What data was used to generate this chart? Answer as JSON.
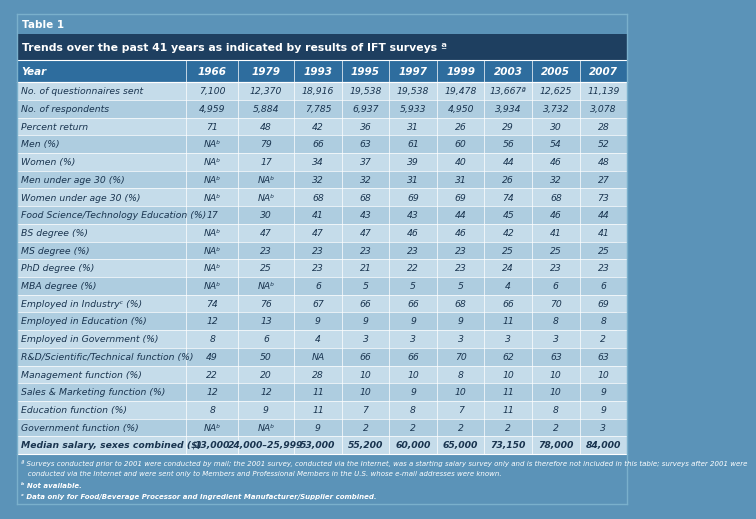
{
  "table_label": "Table 1",
  "title": "Trends over the past 41 years as indicated by results of IFT surveys ª",
  "columns": [
    "Year",
    "1966",
    "1979",
    "1993",
    "1995",
    "1997",
    "1999",
    "2003",
    "2005",
    "2007"
  ],
  "rows": [
    [
      "No. of questionnaires sent",
      "7,100",
      "12,370",
      "18,916",
      "19,538",
      "19,538",
      "19,478",
      "13,667ª",
      "12,625",
      "11,139"
    ],
    [
      "No. of respondents",
      "4,959",
      "5,884",
      "7,785",
      "6,937",
      "5,933",
      "4,950",
      "3,934",
      "3,732",
      "3,078"
    ],
    [
      "Percent return",
      "71",
      "48",
      "42",
      "36",
      "31",
      "26",
      "29",
      "30",
      "28"
    ],
    [
      "Men (%)",
      "NAᵇ",
      "79",
      "66",
      "63",
      "61",
      "60",
      "56",
      "54",
      "52"
    ],
    [
      "Women (%)",
      "NAᵇ",
      "17",
      "34",
      "37",
      "39",
      "40",
      "44",
      "46",
      "48"
    ],
    [
      "Men under age 30 (%)",
      "NAᵇ",
      "NAᵇ",
      "32",
      "32",
      "31",
      "31",
      "26",
      "32",
      "27"
    ],
    [
      "Women under age 30 (%)",
      "NAᵇ",
      "NAᵇ",
      "68",
      "68",
      "69",
      "69",
      "74",
      "68",
      "73"
    ],
    [
      "Food Science/Technology Education (%)",
      "17",
      "30",
      "41",
      "43",
      "43",
      "44",
      "45",
      "46",
      "44"
    ],
    [
      "BS degree (%)",
      "NAᵇ",
      "47",
      "47",
      "47",
      "46",
      "46",
      "42",
      "41",
      "41"
    ],
    [
      "MS degree (%)",
      "NAᵇ",
      "23",
      "23",
      "23",
      "23",
      "23",
      "25",
      "25",
      "25"
    ],
    [
      "PhD degree (%)",
      "NAᵇ",
      "25",
      "23",
      "21",
      "22",
      "23",
      "24",
      "23",
      "23"
    ],
    [
      "MBA degree (%)",
      "NAᵇ",
      "NAᵇ",
      "6",
      "5",
      "5",
      "5",
      "4",
      "6",
      "6"
    ],
    [
      "Employed in Industryᶜ (%)",
      "74",
      "76",
      "67",
      "66",
      "66",
      "68",
      "66",
      "70",
      "69"
    ],
    [
      "Employed in Education (%)",
      "12",
      "13",
      "9",
      "9",
      "9",
      "9",
      "11",
      "8",
      "8"
    ],
    [
      "Employed in Government (%)",
      "8",
      "6",
      "4",
      "3",
      "3",
      "3",
      "3",
      "3",
      "2"
    ],
    [
      "R&D/Scientific/Technical function (%)",
      "49",
      "50",
      "NA",
      "66",
      "66",
      "70",
      "62",
      "63",
      "63"
    ],
    [
      "Management function (%)",
      "22",
      "20",
      "28",
      "10",
      "10",
      "8",
      "10",
      "10",
      "10"
    ],
    [
      "Sales & Marketing function (%)",
      "12",
      "12",
      "11",
      "10",
      "9",
      "10",
      "11",
      "10",
      "9"
    ],
    [
      "Education function (%)",
      "8",
      "9",
      "11",
      "7",
      "8",
      "7",
      "11",
      "8",
      "9"
    ],
    [
      "Government function (%)",
      "NAᵇ",
      "NAᵇ",
      "9",
      "2",
      "2",
      "2",
      "2",
      "2",
      "3"
    ],
    [
      "Median salary, sexes combined ($)",
      "13,000",
      "24,000–25,999",
      "53,000",
      "55,200",
      "60,000",
      "65,000",
      "73,150",
      "78,000",
      "84,000"
    ]
  ],
  "footnote1_a": "ª",
  "footnote1_text": " Surveys conducted prior to 2001 were conducted by mail; the 2001 survey, conducted via the Internet, was a starting salary survey only and is therefore not included in this table; surveys after 2001 were conducted via the Internet and were sent only to Members and Professional Members in the U.S. whose e-mail addresses were known.",
  "footnote2_a": "ᵇ",
  "footnote2_text": " Not available.",
  "footnote3_a": "ᶜ",
  "footnote3_text": " Data only for Food/Beverage Processor and Ingredient Manufacturer/Supplier combined.",
  "color_outer_bg": "#5b93b8",
  "color_label_bg": "#5b93b8",
  "color_title_bg": "#1e3f60",
  "color_col_header_bg": "#2e6d9e",
  "color_row_odd": "#c5dcea",
  "color_row_even": "#aecde0",
  "color_footer_bg": "#5b93b8",
  "color_text_white": "#ffffff",
  "color_text_body": "#1a3550",
  "color_border": "#7ab0cc"
}
